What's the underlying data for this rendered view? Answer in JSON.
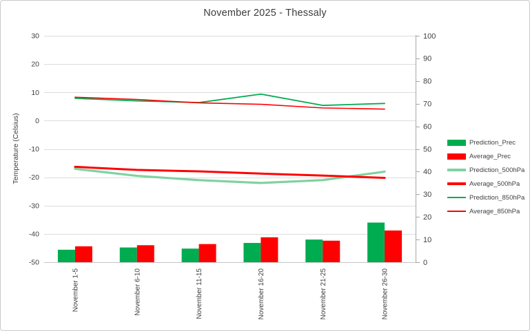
{
  "chart_data": {
    "type": "combo-bar-line",
    "title": "November 2025 - Thessaly",
    "categories": [
      "November 1-5",
      "November 6-10",
      "November 11-15",
      "November 16-20",
      "November 21-25",
      "November 26-30"
    ],
    "y_left": {
      "label": "Temperature (Celsius)",
      "min": -50,
      "max": 30,
      "step": 10,
      "ticks": [
        "30",
        "20",
        "10",
        "0",
        "-10",
        "-20",
        "-30",
        "-40",
        "-50"
      ]
    },
    "y_right": {
      "min": 0,
      "max": 100,
      "step": 10,
      "ticks": [
        "100",
        "90",
        "80",
        "70",
        "60",
        "50",
        "40",
        "30",
        "20",
        "10",
        "0"
      ]
    },
    "bar_series": [
      {
        "name": "Prediction_Prec",
        "axis": "right",
        "color": "#00AC50",
        "values": [
          5.5,
          6.5,
          6,
          8.5,
          10,
          17.5
        ]
      },
      {
        "name": "Average_Prec",
        "axis": "right",
        "color": "#FF0000",
        "values": [
          7,
          7.5,
          8,
          11,
          9.5,
          14
        ]
      }
    ],
    "line_series": [
      {
        "name": "Prediction_500hPa",
        "axis": "left",
        "color": "#80D2A0",
        "stroke_width": 3.2,
        "values": [
          -17,
          -19.5,
          -21,
          -22,
          -21,
          -18
        ]
      },
      {
        "name": "Average_500hPa",
        "axis": "left",
        "color": "#FF0000",
        "stroke_width": 3,
        "values": [
          -16.3,
          -17.4,
          -17.9,
          -18.7,
          -19.4,
          -20.2
        ]
      },
      {
        "name": "Prediction_850hPa",
        "axis": "left",
        "color": "#00AC50",
        "stroke_width": 1.8,
        "values": [
          7.9,
          7,
          6.4,
          9.4,
          5.4,
          6.1
        ]
      },
      {
        "name": "Average_850hPa",
        "axis": "left",
        "color": "#FF0000",
        "stroke_width": 1.6,
        "values": [
          8.3,
          7.5,
          6.3,
          5.8,
          4.5,
          4.1
        ]
      }
    ],
    "legend_position": "right",
    "grid": true,
    "text_color": "#404040",
    "grid_color": "#DCDCDC",
    "axis_color": "#A6A6A6"
  }
}
